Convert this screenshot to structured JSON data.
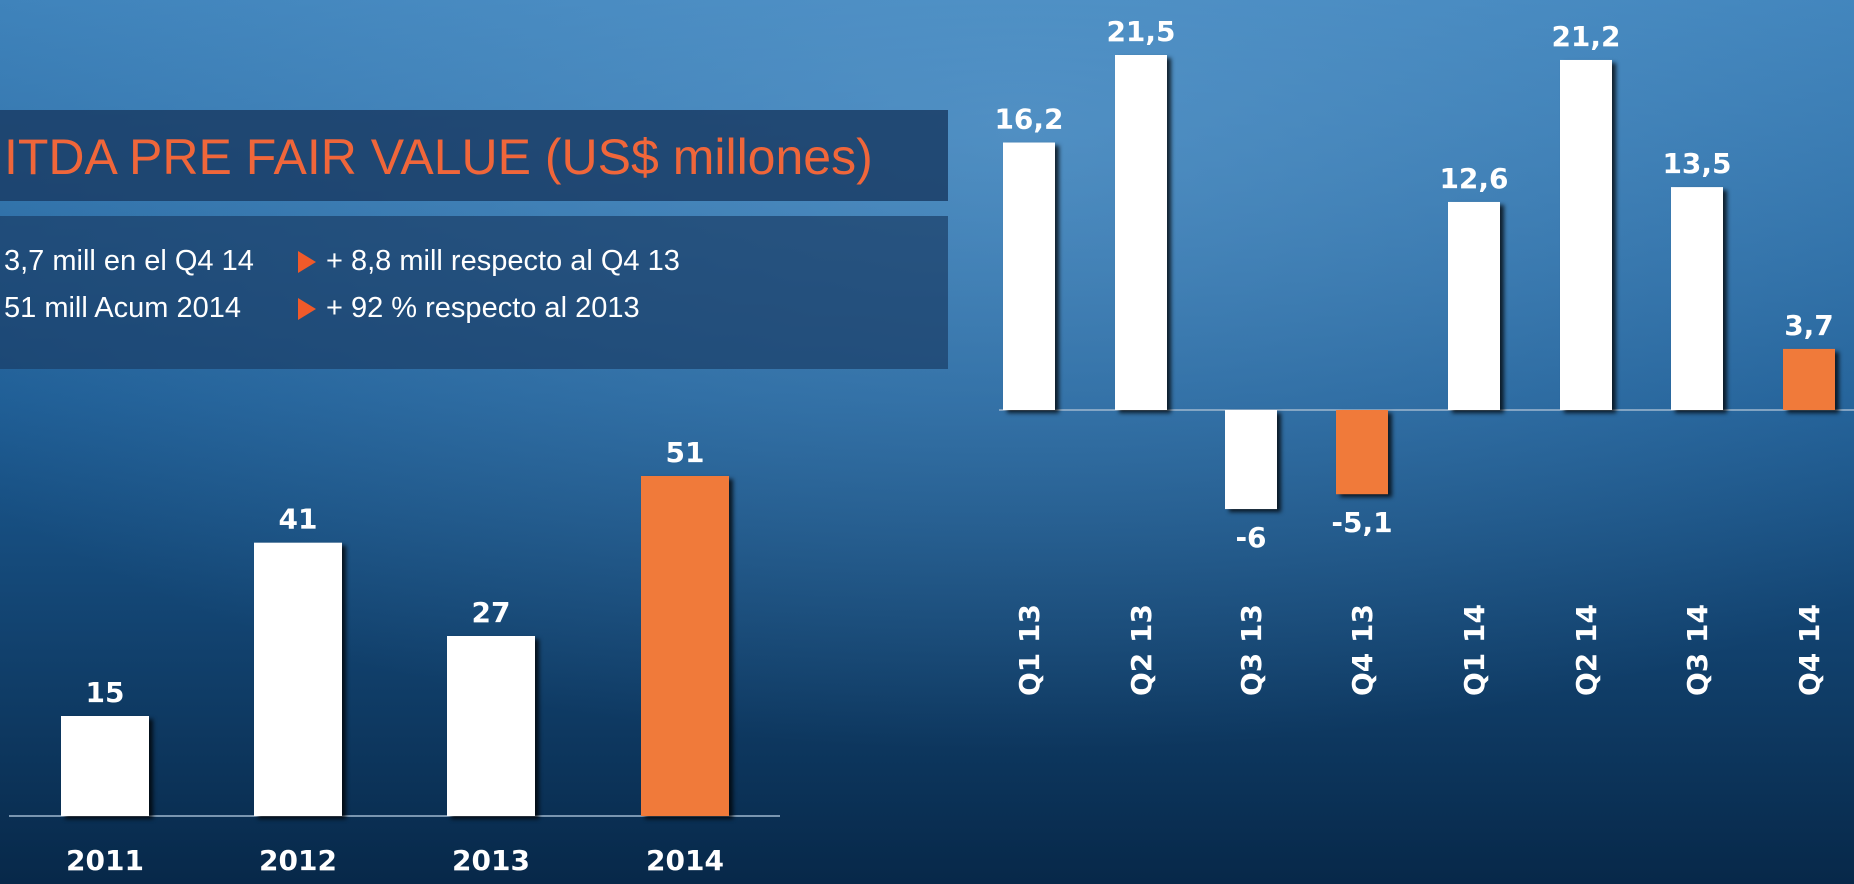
{
  "header": {
    "title": "ITDA PRE FAIR VALUE (US$ millones)"
  },
  "notes": [
    {
      "left": "3,7 mill en el Q4 14",
      "right": "+ 8,8 mill respecto al Q4 13"
    },
    {
      "left": "51 mill Acum 2014",
      "right": "+ 92 % respecto al 2013"
    }
  ],
  "chart_data": [
    {
      "type": "bar",
      "categories": [
        "2011",
        "2012",
        "2013",
        "2014"
      ],
      "values": [
        15,
        41,
        27,
        51
      ],
      "colors": [
        "#ffffff",
        "#ffffff",
        "#ffffff",
        "#f07a3a"
      ]
    },
    {
      "type": "bar",
      "categories": [
        "Q1 13",
        "Q2 13",
        "Q3 13",
        "Q4 13",
        "Q1 14",
        "Q2 14",
        "Q3 14",
        "Q4 14"
      ],
      "values": [
        16.2,
        21.5,
        -6,
        -5.1,
        12.6,
        21.2,
        13.5,
        3.7
      ],
      "value_labels": [
        "16,2",
        "21,5",
        "-6",
        "-5,1",
        "12,6",
        "21,2",
        "13,5",
        "3,7"
      ],
      "colors": [
        "#ffffff",
        "#ffffff",
        "#ffffff",
        "#f07a3a",
        "#ffffff",
        "#ffffff",
        "#ffffff",
        "#f07a3a"
      ]
    }
  ]
}
